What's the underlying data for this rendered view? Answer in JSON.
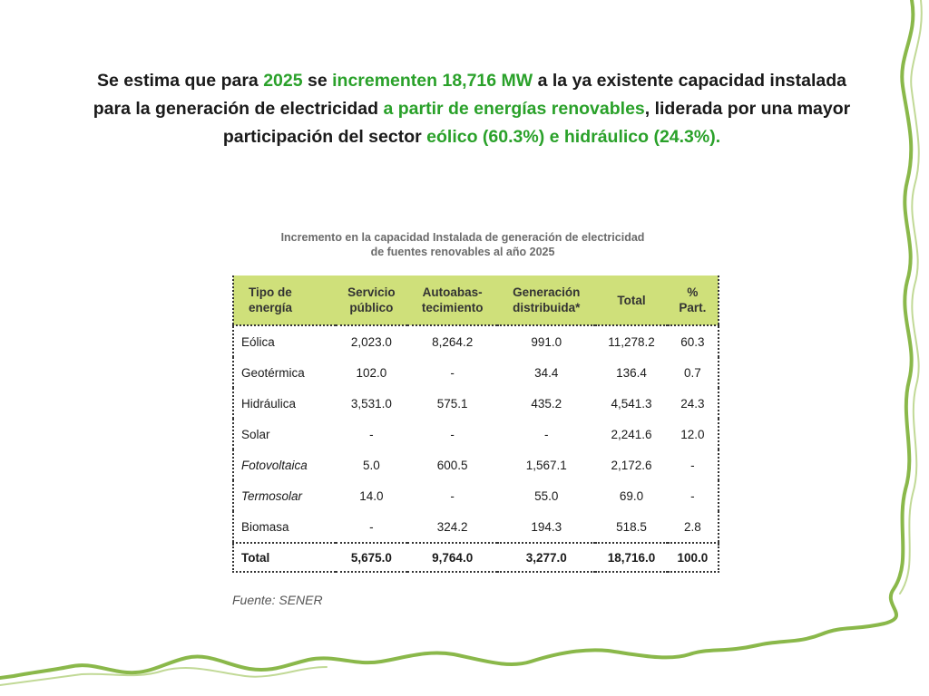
{
  "headline": {
    "p1": "Se estima que para ",
    "p2": "2025",
    "p3": " se ",
    "p4": "incrementen 18,716 MW",
    "p5": " a la ya existente capacidad instalada para la generación de electricidad ",
    "p6": "a partir de energías renovables",
    "p7": ", liderada por una mayor participación del sector ",
    "p8": "eólico (60.3%) e hidráulico (24.3%).",
    "highlight_color": "#2aa12a"
  },
  "table": {
    "title_line1": "Incremento en la capacidad Instalada de generación de electricidad",
    "title_line2": "de fuentes renovables al año 2025",
    "header_color": "#cfe07a",
    "headers": [
      [
        "Tipo de",
        "energía"
      ],
      [
        "Servicio",
        "público"
      ],
      [
        "Autoabas-",
        "tecimiento"
      ],
      [
        "Generación",
        "distribuida*"
      ],
      [
        "Total",
        ""
      ],
      [
        "%",
        "Part."
      ]
    ],
    "rows": [
      {
        "tipo": "Eólica",
        "servicio": "2,023.0",
        "autoabas": "8,264.2",
        "generacion": "991.0",
        "total": "11,278.2",
        "part": "60.3"
      },
      {
        "tipo": "Geotérmica",
        "servicio": "102.0",
        "autoabas": "-",
        "generacion": "34.4",
        "total": "136.4",
        "part": "0.7"
      },
      {
        "tipo": "Hidráulica",
        "servicio": "3,531.0",
        "autoabas": "575.1",
        "generacion": "435.2",
        "total": "4,541.3",
        "part": "24.3"
      },
      {
        "tipo": "Solar",
        "servicio": "-",
        "autoabas": "-",
        "generacion": "-",
        "total": "2,241.6",
        "part": "12.0"
      },
      {
        "tipo": "Fotovoltaica",
        "servicio": "5.0",
        "autoabas": "600.5",
        "generacion": "1,567.1",
        "total": "2,172.6",
        "part": "-"
      },
      {
        "tipo": "Termosolar",
        "servicio": "14.0",
        "autoabas": "-",
        "generacion": "55.0",
        "total": "69.0",
        "part": "-"
      },
      {
        "tipo": "Biomasa",
        "servicio": "-",
        "autoabas": "324.2",
        "generacion": "194.3",
        "total": "518.5",
        "part": "2.8"
      }
    ],
    "total_row": {
      "tipo": "Total",
      "servicio": "5,675.0",
      "autoabas": "9,764.0",
      "generacion": "3,277.0",
      "total": "18,716.0",
      "part": "100.0"
    }
  },
  "source": "Fuente: SENER",
  "border_color": "#8ab84a"
}
